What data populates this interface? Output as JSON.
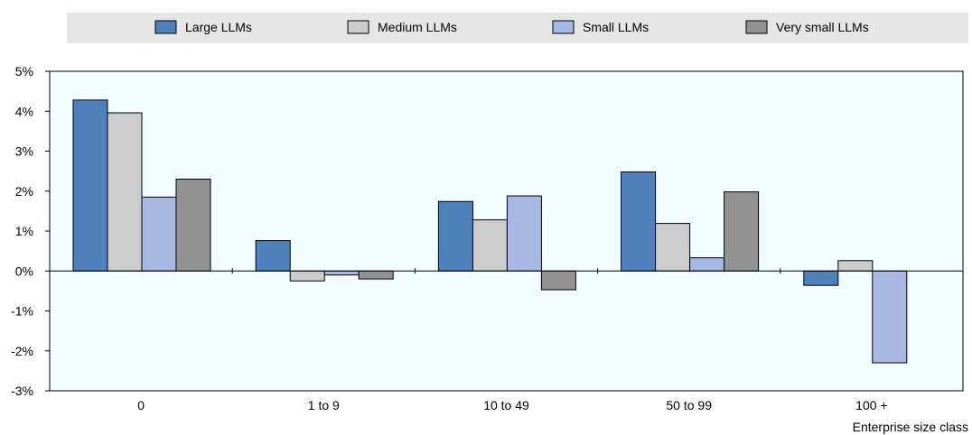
{
  "chart_data": {
    "type": "bar",
    "categories": [
      "0",
      "1 to 9",
      "10 to 49",
      "50 to 99",
      "100 +"
    ],
    "series": [
      {
        "name": "Large LLMs",
        "color": "#4f81bd",
        "values": [
          4.28,
          0.76,
          1.74,
          2.48,
          -0.36
        ]
      },
      {
        "name": "Medium LLMs",
        "color": "#cccccc",
        "values": [
          3.96,
          -0.25,
          1.28,
          1.19,
          0.26
        ]
      },
      {
        "name": "Small LLMs",
        "color": "#a6b8e3",
        "values": [
          1.85,
          -0.1,
          1.88,
          0.33,
          -2.3
        ]
      },
      {
        "name": "Very small LLMs",
        "color": "#929292",
        "values": [
          2.3,
          -0.2,
          -0.47,
          1.98,
          null
        ]
      }
    ],
    "ylim": [
      -3,
      5
    ],
    "yticks": [
      -3,
      -2,
      -1,
      0,
      1,
      2,
      3,
      4,
      5
    ],
    "ytick_labels": [
      "-3%",
      "-2%",
      "-1%",
      "0%",
      "1%",
      "2%",
      "3%",
      "4%",
      "5%"
    ],
    "xlabel": "Enterprise size class",
    "ylabel": "",
    "legend_position": "top",
    "plot_background": "#f0fcff",
    "legend_background": "#e6e6e6"
  }
}
